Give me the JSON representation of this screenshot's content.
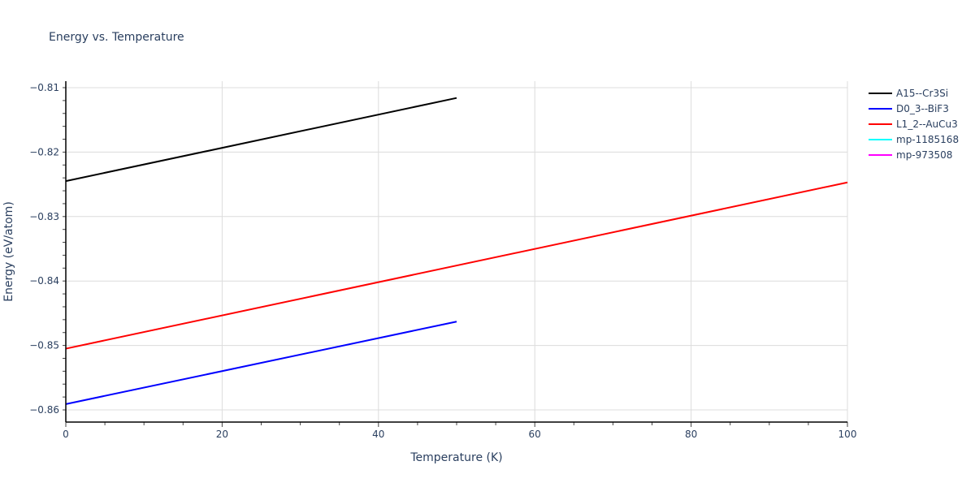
{
  "chart_data": {
    "type": "line",
    "title": "Energy vs. Temperature",
    "xlabel": "Temperature (K)",
    "ylabel": "Energy (eV/atom)",
    "xlim": [
      0,
      100
    ],
    "ylim": [
      -0.8615,
      -0.8092
    ],
    "xticks": [
      0,
      20,
      40,
      60,
      80,
      100
    ],
    "yticks": [
      -0.81,
      -0.82,
      -0.83,
      -0.84,
      -0.85,
      -0.86
    ],
    "ytick_labels": [
      "−0.81",
      "−0.82",
      "−0.83",
      "−0.84",
      "−0.85",
      "−0.86"
    ],
    "grid": true,
    "legend_position": "right",
    "series": [
      {
        "name": "A15--Cr3Si",
        "color": "#000000",
        "x": [
          0,
          50
        ],
        "y": [
          -0.8245,
          -0.8116
        ]
      },
      {
        "name": "D0_3--BiF3",
        "color": "#0000ff",
        "x": [
          0,
          50
        ],
        "y": [
          -0.8591,
          -0.8463
        ]
      },
      {
        "name": "L1_2--AuCu3",
        "color": "#ff0000",
        "x": [
          0,
          100
        ],
        "y": [
          -0.8505,
          -0.8247
        ]
      },
      {
        "name": "mp-1185168",
        "color": "#00ffff",
        "x": [],
        "y": []
      },
      {
        "name": "mp-973508",
        "color": "#ff00ff",
        "x": [],
        "y": []
      }
    ]
  }
}
